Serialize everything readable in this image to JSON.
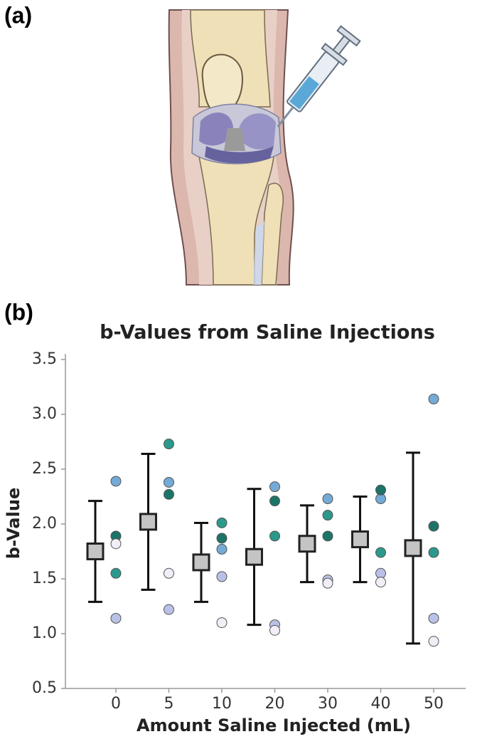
{
  "panel_labels": [
    "(a)",
    "(b)"
  ],
  "chart_data": {
    "type": "errorbar-scatter",
    "title": "b-Values from Saline Injections",
    "x_label": "Amount Saline Injected (mL)",
    "y_label": "b-Value",
    "categories": [
      "0",
      "5",
      "10",
      "20",
      "30",
      "40",
      "50"
    ],
    "ylim": [
      0.5,
      3.5
    ],
    "yticks": [
      0.5,
      {
        "value": 1,
        "label": "1.0"
      },
      1.5,
      {
        "value": 2,
        "label": "2.0"
      },
      2.5,
      {
        "value": 3,
        "label": "3.0"
      },
      3.5
    ],
    "mean": {
      "color": "#c4c4c4",
      "values": [
        1.75,
        2.02,
        1.65,
        1.7,
        1.82,
        1.86,
        1.78
      ],
      "errors": [
        0.46,
        0.62,
        0.36,
        0.62,
        0.35,
        0.39,
        0.87
      ]
    },
    "series": [
      {
        "color": "#74aad6",
        "values": [
          2.39,
          2.38,
          1.77,
          2.34,
          2.23,
          2.23,
          3.14
        ]
      },
      {
        "color": "#1c7468",
        "values": [
          1.89,
          2.27,
          1.87,
          2.21,
          1.89,
          2.31,
          1.98
        ]
      },
      {
        "color": "#2b998b",
        "values": [
          1.55,
          2.73,
          2.01,
          1.89,
          2.08,
          1.74,
          1.74
        ]
      },
      {
        "color": "#b9c2e6",
        "values": [
          1.14,
          1.22,
          1.52,
          1.08,
          1.49,
          1.55,
          1.14
        ]
      },
      {
        "color": "#f1eef7",
        "values": [
          1.82,
          1.55,
          1.1,
          1.03,
          1.46,
          1.47,
          0.93
        ]
      }
    ]
  }
}
